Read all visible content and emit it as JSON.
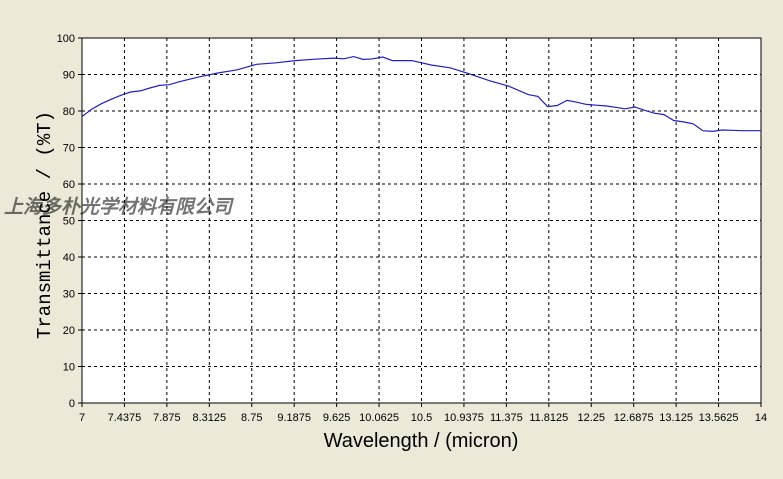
{
  "chart_data": {
    "type": "line",
    "title": "",
    "xlabel": "Wavelength / (micron)",
    "ylabel": "Transmittance / (%T)",
    "xlim": [
      7,
      14
    ],
    "ylim": [
      0,
      100
    ],
    "x_ticks": [
      7,
      7.4375,
      7.875,
      8.3125,
      8.75,
      9.1875,
      9.625,
      10.0625,
      10.5,
      10.9375,
      11.375,
      11.8125,
      12.25,
      12.6875,
      13.125,
      13.5625,
      14
    ],
    "x_tick_labels": [
      "7",
      "7.4375",
      "7.875",
      "8.3125",
      "8.75",
      "9.1875",
      "9.625",
      "10.0625",
      "10.5",
      "10.9375",
      "11.375",
      "11.8125",
      "12.25",
      "12.6875",
      "13.125",
      "13.5625",
      "14"
    ],
    "y_ticks": [
      0,
      10,
      20,
      30,
      40,
      50,
      60,
      70,
      80,
      90,
      100
    ],
    "y_tick_labels": [
      "0",
      "10",
      "20",
      "30",
      "40",
      "50",
      "60",
      "70",
      "80",
      "90",
      "100"
    ],
    "grid": true,
    "series": [
      {
        "color": "#2020c0",
        "x": [
          7.0,
          7.1,
          7.2,
          7.3,
          7.4,
          7.5,
          7.6,
          7.7,
          7.8,
          7.9,
          8.0,
          8.2,
          8.4,
          8.6,
          8.8,
          9.0,
          9.2,
          9.4,
          9.6,
          9.7,
          9.8,
          9.9,
          10.0,
          10.1,
          10.2,
          10.4,
          10.6,
          10.8,
          11.0,
          11.2,
          11.4,
          11.6,
          11.7,
          11.8,
          11.9,
          12.0,
          12.1,
          12.2,
          12.3,
          12.4,
          12.5,
          12.6,
          12.7,
          12.8,
          12.9,
          13.0,
          13.1,
          13.2,
          13.3,
          13.4,
          13.5,
          13.6,
          13.7,
          13.8,
          14.0
        ],
        "y": [
          78.5,
          80.5,
          82,
          83.2,
          84.3,
          85.2,
          85.5,
          86.3,
          87,
          87.2,
          88,
          89.3,
          90.4,
          91.3,
          92.8,
          93.2,
          93.8,
          94.2,
          94.5,
          94.3,
          94.9,
          94.1,
          94.3,
          94.8,
          93.8,
          93.8,
          92.6,
          91.8,
          90.1,
          88.3,
          86.8,
          84.5,
          84.0,
          81.2,
          81.5,
          82.9,
          82.4,
          81.8,
          81.6,
          81.4,
          81.0,
          80.6,
          81.1,
          80.2,
          79.4,
          79.0,
          77.4,
          77.0,
          76.5,
          74.6,
          74.4,
          74.8,
          74.7,
          74.6,
          74.6
        ]
      }
    ]
  },
  "watermark": "上海多朴光学材料有限公司"
}
